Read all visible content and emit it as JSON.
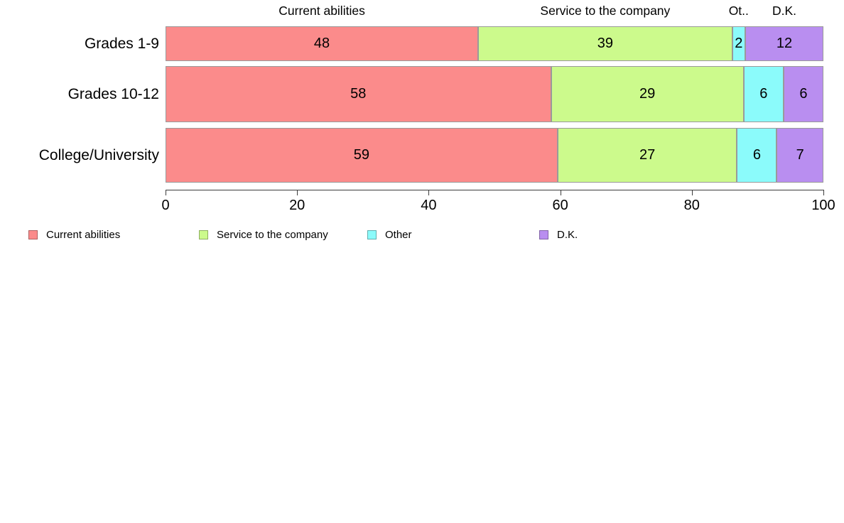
{
  "chart_data": {
    "type": "bar",
    "orientation": "horizontal",
    "stacked": true,
    "title": "",
    "xlabel": "",
    "ylabel": "",
    "categories": [
      "Grades 1-9",
      "Grades 10-12",
      "College/University"
    ],
    "series": [
      {
        "name": "Current abilities",
        "color": "#fb8b8b",
        "values": [
          48,
          58,
          59
        ]
      },
      {
        "name": "Service to the company",
        "color": "#ccfa8c",
        "values": [
          39,
          29,
          27
        ]
      },
      {
        "name": "Other",
        "color": "#8bfbfb",
        "values": [
          2,
          6,
          6
        ]
      },
      {
        "name": "D.K.",
        "color": "#b98ef0",
        "values": [
          12,
          6,
          7
        ]
      }
    ],
    "column_headers": [
      "Current abilities",
      "Service to the company",
      "Ot..",
      "D.K."
    ],
    "x_ticks": [
      0,
      20,
      40,
      60,
      80,
      100
    ],
    "xlim": [
      0,
      100
    ],
    "grid": false,
    "bar_labels_shown": true,
    "normalized_rows": true,
    "legend_position": "bottom",
    "legend": [
      {
        "label": "Current abilities",
        "color": "#fb8b8b"
      },
      {
        "label": "Service to the company",
        "color": "#ccfa8c"
      },
      {
        "label": "Other",
        "color": "#8bfbfb"
      },
      {
        "label": "D.K.",
        "color": "#b98ef0"
      }
    ],
    "colors": {
      "bar_border": "#9a9a9a",
      "axis": "#3c3c3c",
      "text": "#000000",
      "background": "#ffffff"
    }
  }
}
